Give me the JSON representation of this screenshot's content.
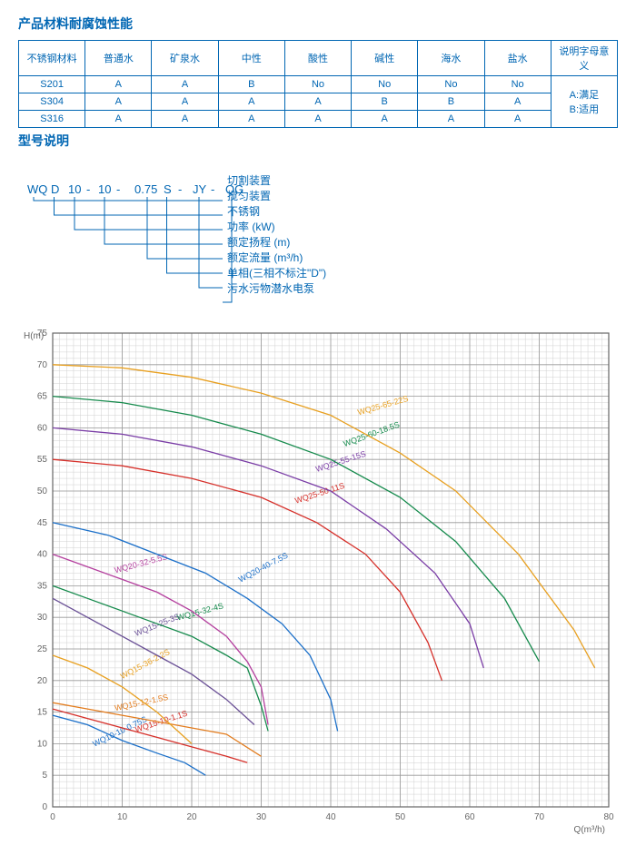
{
  "section_titles": {
    "table": "产品材料耐腐蚀性能",
    "model": "型号说明"
  },
  "table": {
    "headers": [
      "不锈钢材料",
      "普通水",
      "矿泉水",
      "中性",
      "酸性",
      "碱性",
      "海水",
      "盐水",
      "说明字母意义"
    ],
    "rows": [
      [
        "S201",
        "A",
        "A",
        "B",
        "No",
        "No",
        "No",
        "No"
      ],
      [
        "S304",
        "A",
        "A",
        "A",
        "A",
        "B",
        "B",
        "A"
      ],
      [
        "S316",
        "A",
        "A",
        "A",
        "A",
        "A",
        "A",
        "A"
      ]
    ],
    "legend": [
      "A:满足",
      "B:适用"
    ]
  },
  "model": {
    "code_parts": [
      "WQ",
      "D",
      "10",
      "-",
      "10",
      "-",
      "0.75",
      "S",
      "-",
      "JY",
      "-",
      "QG"
    ],
    "labels": [
      "切割装置",
      "搅匀装置",
      "不锈钢",
      "功率 (kW)",
      "额定扬程 (m)",
      "额定流量 (m³/h)",
      "单相(三相不标注\"D\")",
      "污水污物潜水电泵"
    ]
  },
  "chart": {
    "x_label": "Q(m³/h)",
    "y_label": "H(m)",
    "xlim": [
      0,
      80
    ],
    "xtick_step": 10,
    "x_minor": 1,
    "ylim": [
      0,
      75
    ],
    "ytick_step": 5,
    "y_minor": 1,
    "background": "#ffffff",
    "grid_minor_color": "#d0d0d0",
    "grid_major_color": "#999999",
    "curves": [
      {
        "name": "WQ10-10-0.75S",
        "color": "#1a6fc9",
        "pts": [
          [
            0,
            14.5
          ],
          [
            5,
            13
          ],
          [
            10,
            10.5
          ],
          [
            15,
            8.5
          ],
          [
            19,
            7
          ],
          [
            22,
            5
          ]
        ],
        "lx": 6,
        "ly": 9.5,
        "angle": -26
      },
      {
        "name": "WQ15-10-1.1S",
        "color": "#d6302a",
        "pts": [
          [
            0,
            15.5
          ],
          [
            5,
            14
          ],
          [
            10,
            12.5
          ],
          [
            15,
            11
          ],
          [
            20,
            9.5
          ],
          [
            25,
            8
          ],
          [
            28,
            7
          ]
        ],
        "lx": 12,
        "ly": 11.8,
        "angle": -18
      },
      {
        "name": "WQ15-12-1.5S",
        "color": "#e37d1f",
        "pts": [
          [
            0,
            16.5
          ],
          [
            5,
            15.5
          ],
          [
            10,
            14.5
          ],
          [
            15,
            13.5
          ],
          [
            20,
            12.5
          ],
          [
            25,
            11.5
          ],
          [
            30,
            8
          ]
        ],
        "lx": 9,
        "ly": 15.2,
        "angle": -12
      },
      {
        "name": "WQ15-36-2.2S",
        "color": "#e8a020",
        "pts": [
          [
            0,
            24
          ],
          [
            5,
            22
          ],
          [
            10,
            19
          ],
          [
            15,
            15
          ],
          [
            18,
            12
          ],
          [
            20,
            10
          ]
        ],
        "lx": 10,
        "ly": 20.2,
        "angle": -28
      },
      {
        "name": "WQ15-25-3S",
        "color": "#6a5096",
        "pts": [
          [
            0,
            33
          ],
          [
            5,
            30
          ],
          [
            10,
            27
          ],
          [
            15,
            24
          ],
          [
            20,
            21
          ],
          [
            25,
            17
          ],
          [
            29,
            13
          ]
        ],
        "lx": 12,
        "ly": 27,
        "angle": -22
      },
      {
        "name": "WQ15-32-4S",
        "color": "#158a4c",
        "pts": [
          [
            0,
            35
          ],
          [
            5,
            33
          ],
          [
            10,
            31
          ],
          [
            15,
            29
          ],
          [
            20,
            27
          ],
          [
            25,
            24
          ],
          [
            28,
            22
          ],
          [
            30,
            16
          ],
          [
            31,
            12
          ]
        ],
        "lx": 18,
        "ly": 29.5,
        "angle": -15
      },
      {
        "name": "WQ20-32-5.5S",
        "color": "#b43f9e",
        "pts": [
          [
            0,
            40
          ],
          [
            5,
            38
          ],
          [
            10,
            36
          ],
          [
            15,
            34
          ],
          [
            20,
            31
          ],
          [
            25,
            27
          ],
          [
            28,
            23
          ],
          [
            30,
            19
          ],
          [
            31,
            13
          ]
        ],
        "lx": 9,
        "ly": 37,
        "angle": -15
      },
      {
        "name": "WQ20-40-7.5S",
        "color": "#1a6fc9",
        "pts": [
          [
            0,
            45
          ],
          [
            8,
            43
          ],
          [
            15,
            40
          ],
          [
            22,
            37
          ],
          [
            28,
            33
          ],
          [
            33,
            29
          ],
          [
            37,
            24
          ],
          [
            40,
            17
          ],
          [
            41,
            12
          ]
        ],
        "lx": 27,
        "ly": 35.5,
        "angle": -28
      },
      {
        "name": "WQ25-50-11S",
        "color": "#d6302a",
        "pts": [
          [
            0,
            55
          ],
          [
            10,
            54
          ],
          [
            20,
            52
          ],
          [
            30,
            49
          ],
          [
            38,
            45
          ],
          [
            45,
            40
          ],
          [
            50,
            34
          ],
          [
            54,
            26
          ],
          [
            56,
            20
          ]
        ],
        "lx": 35,
        "ly": 48,
        "angle": -18
      },
      {
        "name": "WQ25-55-15S",
        "color": "#7a3da6",
        "pts": [
          [
            0,
            60
          ],
          [
            10,
            59
          ],
          [
            20,
            57
          ],
          [
            30,
            54
          ],
          [
            40,
            50
          ],
          [
            48,
            44
          ],
          [
            55,
            37
          ],
          [
            60,
            29
          ],
          [
            62,
            22
          ]
        ],
        "lx": 38,
        "ly": 53,
        "angle": -18
      },
      {
        "name": "WQ25-60-18.5S",
        "color": "#158a4c",
        "pts": [
          [
            0,
            65
          ],
          [
            10,
            64
          ],
          [
            20,
            62
          ],
          [
            30,
            59
          ],
          [
            40,
            55
          ],
          [
            50,
            49
          ],
          [
            58,
            42
          ],
          [
            65,
            33
          ],
          [
            70,
            23
          ]
        ],
        "lx": 42,
        "ly": 57,
        "angle": -20
      },
      {
        "name": "WQ25-65-22S",
        "color": "#e8a020",
        "pts": [
          [
            0,
            70
          ],
          [
            10,
            69.5
          ],
          [
            20,
            68
          ],
          [
            30,
            65.5
          ],
          [
            40,
            62
          ],
          [
            50,
            56
          ],
          [
            58,
            50
          ],
          [
            67,
            40
          ],
          [
            75,
            28
          ],
          [
            78,
            22
          ]
        ],
        "lx": 44,
        "ly": 62,
        "angle": -16
      }
    ]
  }
}
